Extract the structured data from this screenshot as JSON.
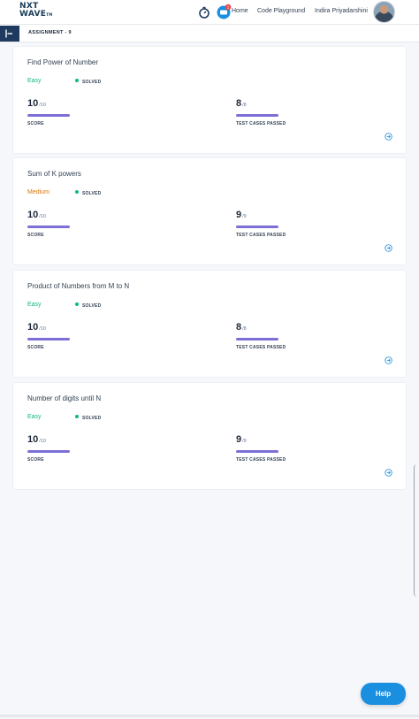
{
  "brand": {
    "line1": "NXT",
    "line2": "WAVE",
    "tm": "TM"
  },
  "nav": {
    "notification_count": "1",
    "home": "Home",
    "playground": "Code Playground",
    "user_name": "Indira Priyadarshini"
  },
  "assignment_title": "ASSIGNMENT - 9",
  "colors": {
    "easy": "#10b981",
    "medium": "#d97706",
    "accent": "#7c6fd6",
    "help": "#1a8fe0"
  },
  "cards": [
    {
      "title": "Find Power of Number",
      "difficulty": "Easy",
      "status": "SOLVED",
      "score": "10",
      "score_total": "/10",
      "score_label": "SCORE",
      "score_fraction": 1.0,
      "cases": "8",
      "cases_total": "/8",
      "cases_label": "TEST CASES PASSED",
      "cases_fraction": 1.0
    },
    {
      "title": "Sum of K powers",
      "difficulty": "Medium",
      "status": "SOLVED",
      "score": "10",
      "score_total": "/10",
      "score_label": "SCORE",
      "score_fraction": 1.0,
      "cases": "9",
      "cases_total": "/9",
      "cases_label": "TEST CASES PASSED",
      "cases_fraction": 1.0
    },
    {
      "title": "Product of Numbers from M to N",
      "difficulty": "Easy",
      "status": "SOLVED",
      "score": "10",
      "score_total": "/10",
      "score_label": "SCORE",
      "score_fraction": 1.0,
      "cases": "8",
      "cases_total": "/8",
      "cases_label": "TEST CASES PASSED",
      "cases_fraction": 1.0
    },
    {
      "title": "Number of digits until N",
      "difficulty": "Easy",
      "status": "SOLVED",
      "score": "10",
      "score_total": "/10",
      "score_label": "SCORE",
      "score_fraction": 1.0,
      "cases": "9",
      "cases_total": "/9",
      "cases_label": "TEST CASES PASSED",
      "cases_fraction": 1.0
    }
  ],
  "help_label": "Help"
}
